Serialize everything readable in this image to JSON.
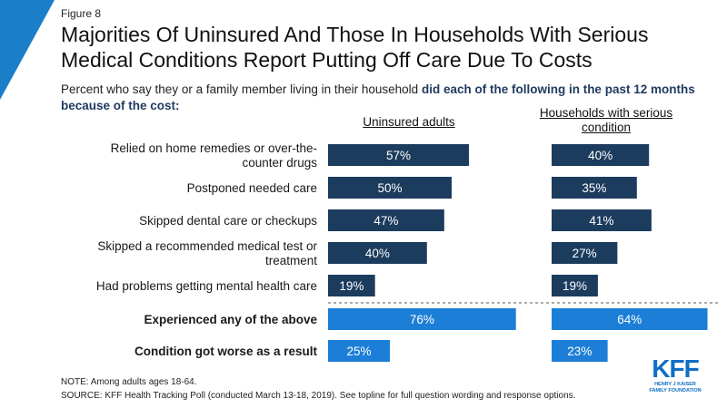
{
  "figure_label": "Figure 8",
  "title": "Majorities Of Uninsured And Those In Households With Serious Medical Conditions Report Putting Off Care Due To Costs",
  "subtitle": {
    "plain": "Percent who say they or a family member living in their household",
    "bold": "did each of the following in the past 12 months because of the cost:"
  },
  "colors": {
    "corner_accent": "#1a7ec8",
    "primary_bar": "#1c3c5e",
    "summary_bar": "#1c7ed6",
    "bar_text": "#ffffff",
    "divider": "#555555"
  },
  "chart_data": {
    "type": "bar",
    "orientation": "horizontal",
    "categories": [
      "Relied on home remedies or over-the-counter drugs",
      "Postponed needed care",
      "Skipped dental care or checkups",
      "Skipped a recommended medical test or treatment",
      "Had problems getting mental health care",
      "Experienced any of the above",
      "Condition got worse as a result"
    ],
    "emphasized_categories": [
      "Experienced any of the above",
      "Condition got worse as a result"
    ],
    "series": [
      {
        "name": "Uninsured adults",
        "values": [
          57,
          50,
          47,
          40,
          19,
          76,
          25
        ]
      },
      {
        "name": "Households with serious condition",
        "values": [
          40,
          35,
          41,
          27,
          19,
          64,
          23
        ]
      }
    ],
    "value_format": "percent",
    "xlim": [
      0,
      100
    ],
    "grid": false,
    "legend": "column headers"
  },
  "notes": [
    "NOTE: Among adults ages 18-64.",
    "SOURCE: KFF Health Tracking Poll (conducted March 13-18, 2019). See topline for full question wording and response options."
  ],
  "logo": {
    "mark": "KFF",
    "line1": "HENRY J KAISER",
    "line2": "FAMILY FOUNDATION"
  }
}
